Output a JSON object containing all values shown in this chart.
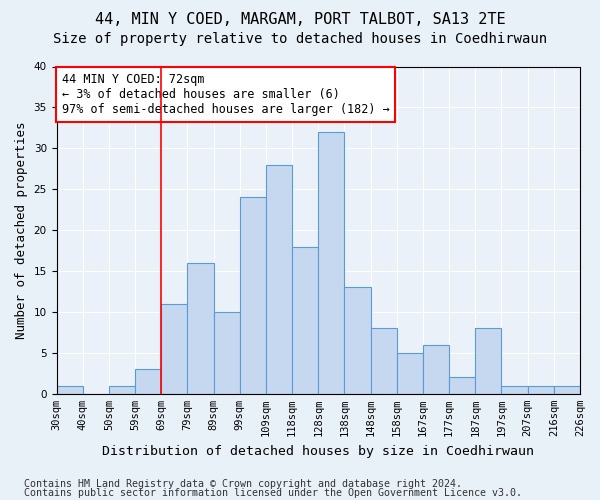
{
  "title1": "44, MIN Y COED, MARGAM, PORT TALBOT, SA13 2TE",
  "title2": "Size of property relative to detached houses in Coedhirwaun",
  "xlabel": "Distribution of detached houses by size in Coedhirwaun",
  "ylabel": "Number of detached properties",
  "categories": [
    "30sqm",
    "40sqm",
    "50sqm",
    "59sqm",
    "69sqm",
    "79sqm",
    "89sqm",
    "99sqm",
    "109sqm",
    "118sqm",
    "128sqm",
    "138sqm",
    "148sqm",
    "158sqm",
    "167sqm",
    "177sqm",
    "187sqm",
    "197sqm",
    "207sqm",
    "216sqm",
    "226sqm"
  ],
  "values": [
    1,
    0,
    1,
    3,
    11,
    16,
    10,
    24,
    28,
    18,
    32,
    13,
    8,
    5,
    6,
    2,
    8,
    1,
    1,
    1
  ],
  "bar_color": "#c5d8f0",
  "bar_edge_color": "#5b9bd5",
  "vline_color": "red",
  "vline_position": 3.5,
  "annotation_text": "44 MIN Y COED: 72sqm\n← 3% of detached houses are smaller (6)\n97% of semi-detached houses are larger (182) →",
  "annotation_box_color": "white",
  "annotation_box_edge_color": "red",
  "ylim": [
    0,
    40
  ],
  "yticks": [
    0,
    5,
    10,
    15,
    20,
    25,
    30,
    35,
    40
  ],
  "footer1": "Contains HM Land Registry data © Crown copyright and database right 2024.",
  "footer2": "Contains public sector information licensed under the Open Government Licence v3.0.",
  "bg_color": "#e8f0f8",
  "plot_bg_color": "#eaf1f9",
  "grid_color": "white",
  "title1_fontsize": 11,
  "title2_fontsize": 10,
  "xlabel_fontsize": 9.5,
  "ylabel_fontsize": 9,
  "tick_fontsize": 7.5,
  "footer_fontsize": 7.2,
  "annotation_fontsize": 8.5
}
